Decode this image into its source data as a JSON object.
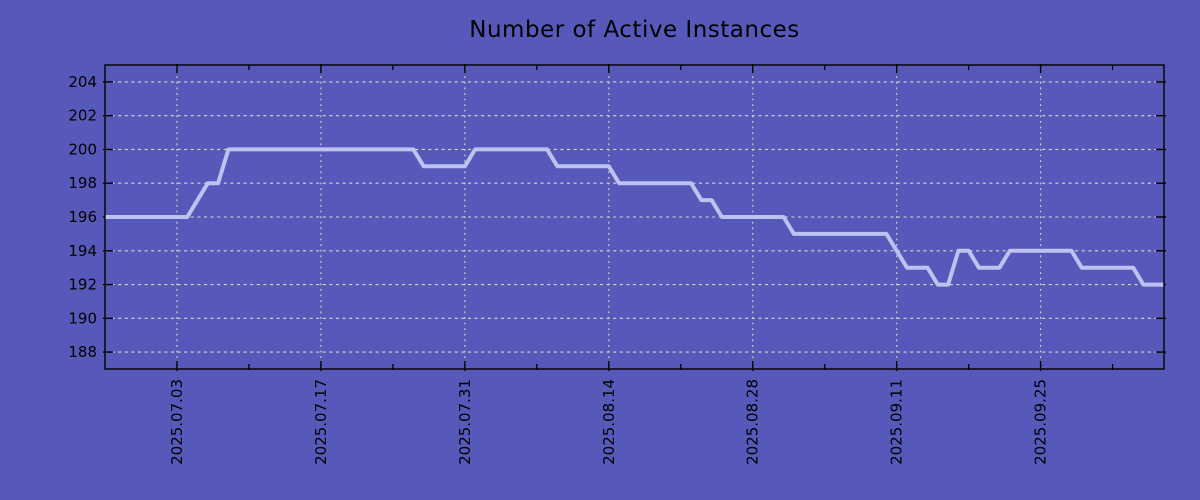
{
  "chart_data": {
    "type": "line",
    "title": "Number of Active Instances",
    "xlabel": "",
    "ylabel": "",
    "x_start_date": "2025.06.26",
    "x_end_date": "2025.10.07",
    "frequency": "daily",
    "values": [
      196,
      196,
      196,
      196,
      196,
      196,
      196,
      196,
      196,
      197,
      198,
      198,
      200,
      200,
      200,
      200,
      200,
      200,
      200,
      200,
      200,
      200,
      200,
      200,
      200,
      200,
      200,
      200,
      200,
      200,
      200,
      199,
      199,
      199,
      199,
      199,
      200,
      200,
      200,
      200,
      200,
      200,
      200,
      200,
      199,
      199,
      199,
      199,
      199,
      199,
      198,
      198,
      198,
      198,
      198,
      198,
      198,
      198,
      197,
      197,
      196,
      196,
      196,
      196,
      196,
      196,
      196,
      195,
      195,
      195,
      195,
      195,
      195,
      195,
      195,
      195,
      195,
      194,
      193,
      193,
      193,
      192,
      192,
      194,
      194,
      193,
      193,
      193,
      194,
      194,
      194,
      194,
      194,
      194,
      194,
      193,
      193,
      193,
      193,
      193,
      193,
      192,
      192,
      192
    ],
    "x_major_ticks": [
      {
        "label": "2025.07.03",
        "day_index": 7
      },
      {
        "label": "2025.07.17",
        "day_index": 21
      },
      {
        "label": "2025.07.31",
        "day_index": 35
      },
      {
        "label": "2025.08.14",
        "day_index": 49
      },
      {
        "label": "2025.08.28",
        "day_index": 63
      },
      {
        "label": "2025.09.11",
        "day_index": 77
      },
      {
        "label": "2025.09.25",
        "day_index": 91
      }
    ],
    "x_minor_tick_day_indices": [
      14,
      28,
      42,
      56,
      70,
      84,
      98
    ],
    "y_ticks": [
      188,
      190,
      192,
      194,
      196,
      198,
      200,
      202,
      204
    ],
    "ylim": [
      187,
      205
    ],
    "grid": "dotted",
    "legend": "none"
  },
  "style": {
    "background_color": "#5659b9",
    "line_color": "#bec2f0",
    "grid_color": "#d8dbc8",
    "axis_color": "#000000",
    "text_color": "#000000"
  }
}
